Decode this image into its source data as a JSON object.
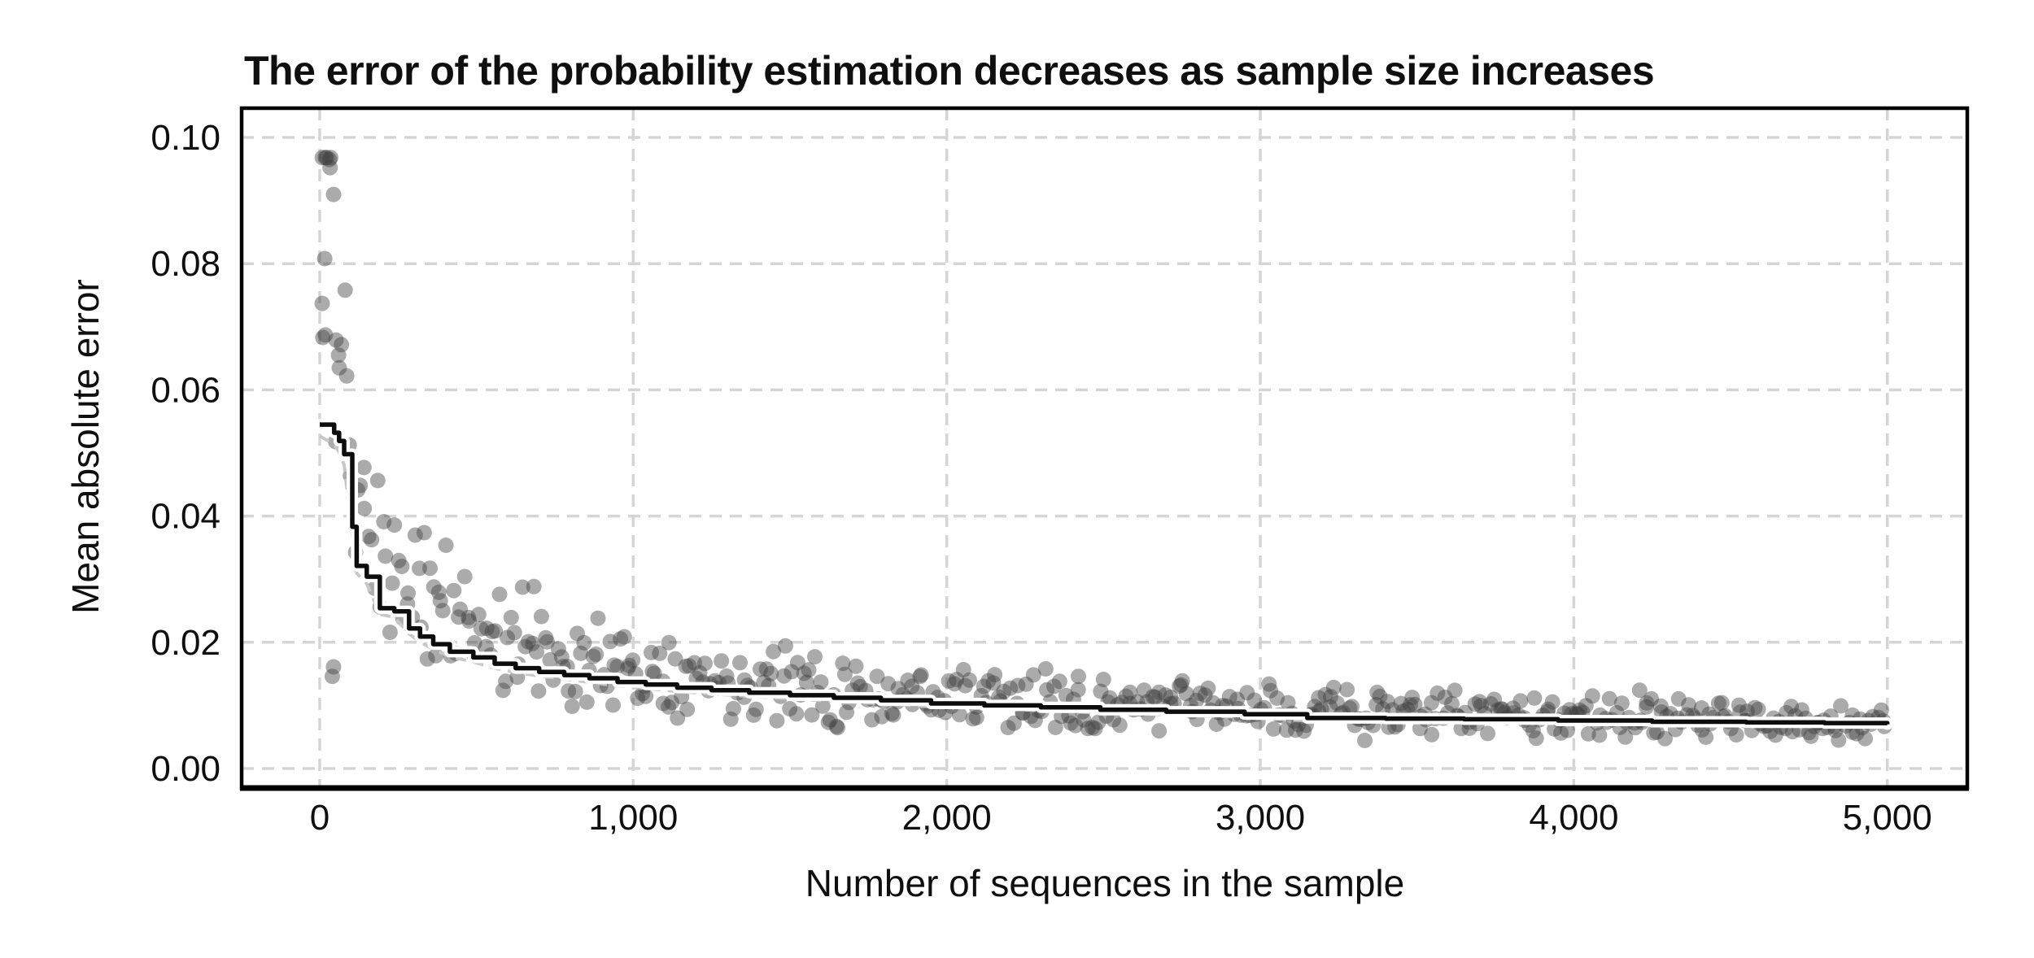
{
  "chart_data": {
    "type": "scatter",
    "title": "The error of the probability estimation decreases as sample size increases",
    "xlabel": "Number of sequences in the sample",
    "ylabel": "Mean absolute error",
    "xlim": [
      -249,
      5255
    ],
    "ylim": [
      -0.0031,
      0.10464
    ],
    "grid": true,
    "legend_position": "none",
    "x_ticks": {
      "values": [
        0,
        1000,
        2000,
        3000,
        4000,
        5000
      ],
      "labels": [
        "0",
        "1,000",
        "2,000",
        "3,000",
        "4,000",
        "5,000"
      ]
    },
    "y_ticks": {
      "values": [
        0,
        0.02,
        0.04,
        0.06,
        0.08,
        0.1
      ],
      "labels": [
        "0.00",
        "0.02",
        "0.04",
        "0.06",
        "0.08",
        "0.10"
      ]
    },
    "styles": {
      "background": "#ffffff",
      "grid_color": "#d5d5d5",
      "grid_width": 3.5,
      "grid_dash": "15 10",
      "spine_color": "#000000",
      "spine_width": 4.5,
      "bottom_spine_width": 7,
      "point_color": "#3f3f3f",
      "point_opacity": 0.44,
      "point_radius": 9.5,
      "trend_color": "#0c0c0c",
      "trend_width": 5.5,
      "halo_color": "#ffffff",
      "halo_width": 14,
      "ref_color": "#c8c8c8",
      "ref_width": 4,
      "ref_dash": "13 9"
    },
    "series": [
      {
        "name": "per-sample mean absolute error (scatter)",
        "type": "scatter",
        "generator": {
          "seed": 11,
          "count": 540,
          "x_min": 8,
          "x_max": 4995,
          "x_jitter": 5,
          "coef": 0.5,
          "floor_n": 22,
          "factor_min": 0.5,
          "factor_max": 1.55,
          "y_min": 0.0042,
          "y_max": 0.0968
        },
        "extra_points": [
          [
            31,
            0.0965
          ],
          [
            33,
            0.0952
          ],
          [
            16,
            0.0808
          ],
          [
            8,
            0.0737
          ],
          [
            18,
            0.0687
          ],
          [
            10,
            0.0683
          ],
          [
            52,
            0.0679
          ],
          [
            60,
            0.0655
          ],
          [
            86,
            0.0622
          ],
          [
            40,
            0.0146
          ],
          [
            44,
            0.0161
          ],
          [
            2420,
            0.0146
          ],
          [
            4210,
            0.0124
          ]
        ]
      },
      {
        "name": "running estimate (black step line)",
        "type": "step_line",
        "points": [
          [
            0,
            0.0545
          ],
          [
            46,
            0.0532
          ],
          [
            62,
            0.0519
          ],
          [
            78,
            0.0498
          ],
          [
            104,
            0.0383
          ],
          [
            118,
            0.0321
          ],
          [
            150,
            0.0304
          ],
          [
            192,
            0.0254
          ],
          [
            238,
            0.0249
          ],
          [
            285,
            0.0222
          ],
          [
            320,
            0.0209
          ],
          [
            362,
            0.0197
          ],
          [
            415,
            0.0185
          ],
          [
            490,
            0.0176
          ],
          [
            558,
            0.0166
          ],
          [
            625,
            0.0159
          ],
          [
            700,
            0.0153
          ],
          [
            780,
            0.0148
          ],
          [
            860,
            0.0143
          ],
          [
            950,
            0.0137
          ],
          [
            1040,
            0.0133
          ],
          [
            1140,
            0.0128
          ],
          [
            1250,
            0.0124
          ],
          [
            1370,
            0.012
          ],
          [
            1500,
            0.0116
          ],
          [
            1640,
            0.0112
          ],
          [
            1790,
            0.0108
          ],
          [
            1950,
            0.0103
          ],
          [
            2120,
            0.01
          ],
          [
            2300,
            0.0097
          ],
          [
            2490,
            0.0093
          ],
          [
            2700,
            0.009
          ],
          [
            2950,
            0.0086
          ],
          [
            3150,
            0.008
          ],
          [
            3400,
            0.0079
          ],
          [
            3650,
            0.0078
          ],
          [
            3950,
            0.0076
          ],
          [
            4250,
            0.0074
          ],
          [
            4550,
            0.0073
          ],
          [
            4800,
            0.0072
          ],
          [
            5000,
            0.007
          ]
        ]
      },
      {
        "name": "reference fit (gray dashed line)",
        "type": "dashed_line",
        "value_transform": {
          "scale": 0.97,
          "offset": -0.0002
        }
      }
    ]
  }
}
